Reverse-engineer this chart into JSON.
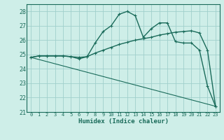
{
  "title": "",
  "xlabel": "Humidex (Indice chaleur)",
  "ylabel": "",
  "xlim": [
    -0.5,
    23.5
  ],
  "ylim": [
    21,
    28.5
  ],
  "yticks": [
    21,
    22,
    23,
    24,
    25,
    26,
    27,
    28
  ],
  "xticks": [
    0,
    1,
    2,
    3,
    4,
    5,
    6,
    7,
    8,
    9,
    10,
    11,
    12,
    13,
    14,
    15,
    16,
    17,
    18,
    19,
    20,
    21,
    22,
    23
  ],
  "bg_color": "#ceeee8",
  "grid_color": "#a0d0cc",
  "line_color": "#1a6b5a",
  "line1_x": [
    0,
    1,
    2,
    3,
    4,
    5,
    6,
    7,
    8,
    9,
    10,
    11,
    12,
    13,
    14,
    15,
    16,
    17,
    18,
    19,
    20,
    21,
    22,
    23
  ],
  "line1_y": [
    24.8,
    24.9,
    24.9,
    24.9,
    24.9,
    24.85,
    24.8,
    24.85,
    25.1,
    25.3,
    25.5,
    25.7,
    25.85,
    26.0,
    26.1,
    26.2,
    26.35,
    26.45,
    26.55,
    26.6,
    26.65,
    26.5,
    25.3,
    21.4
  ],
  "line2_x": [
    0,
    1,
    2,
    3,
    4,
    5,
    6,
    7,
    8,
    9,
    10,
    11,
    12,
    13,
    14,
    15,
    16,
    17,
    18,
    19,
    20,
    21,
    22,
    23
  ],
  "line2_y": [
    24.8,
    24.9,
    24.9,
    24.9,
    24.9,
    24.85,
    24.7,
    24.85,
    25.8,
    26.6,
    27.0,
    27.8,
    28.0,
    27.7,
    26.2,
    26.8,
    27.2,
    27.2,
    25.9,
    25.8,
    25.8,
    25.3,
    22.8,
    21.4
  ],
  "line3_x": [
    0,
    23
  ],
  "line3_y": [
    24.8,
    21.4
  ],
  "figsize": [
    3.2,
    2.0
  ],
  "dpi": 100
}
